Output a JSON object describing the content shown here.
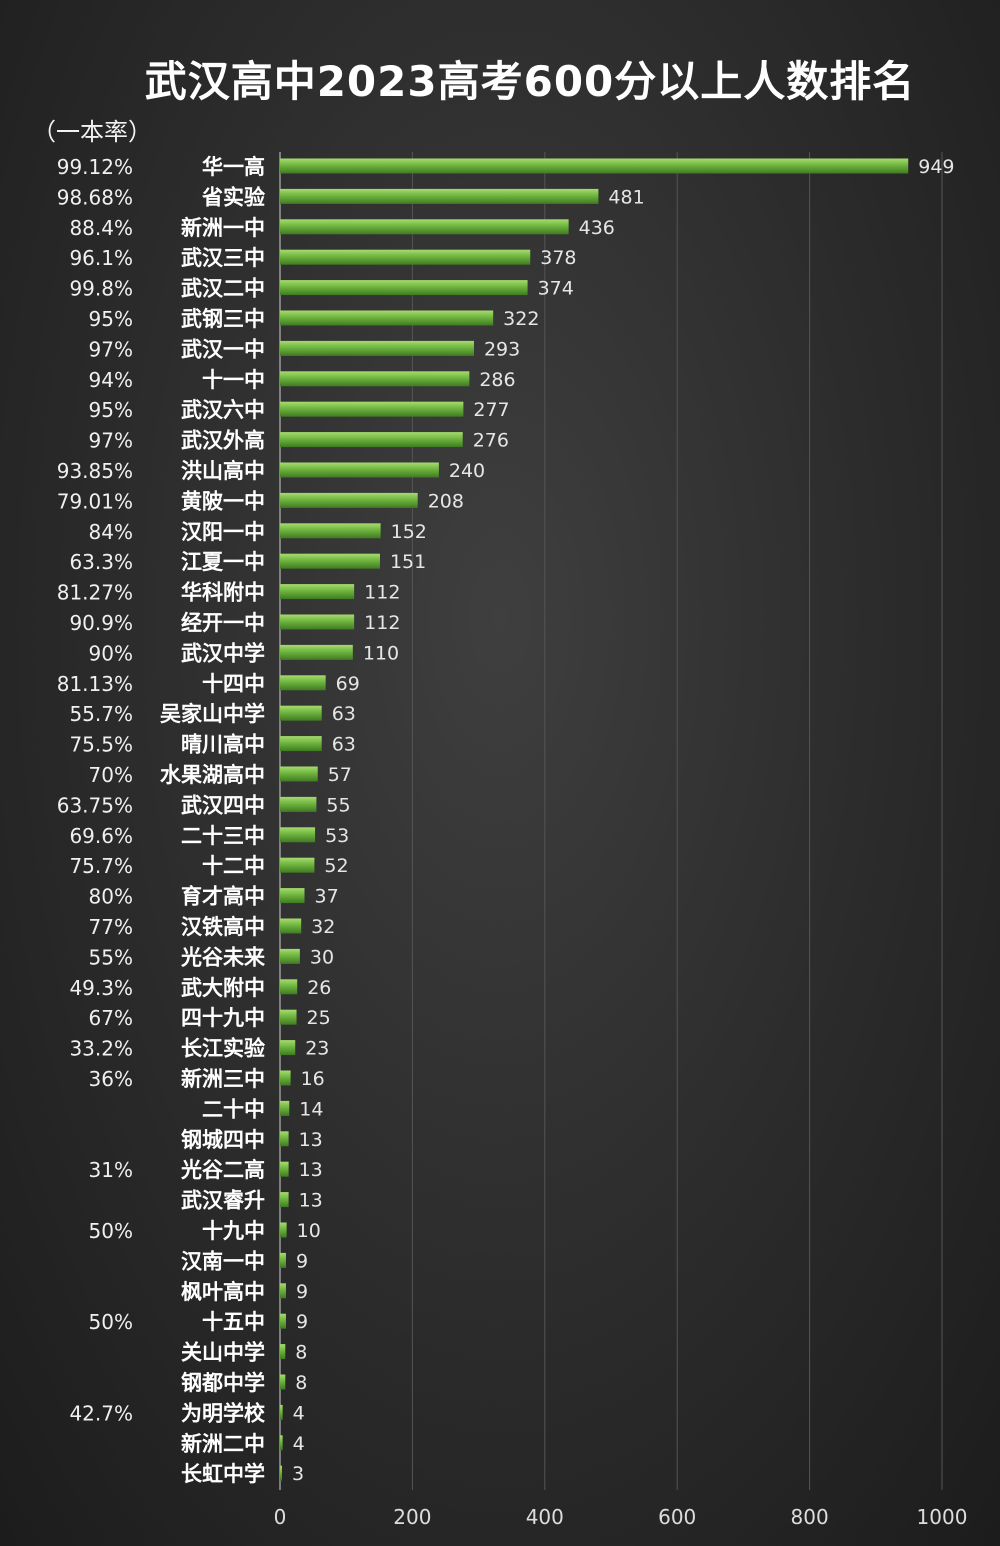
{
  "title": "武汉高中2023高考600分以上人数排名",
  "rate_header": "（一本率）",
  "chart_data": {
    "type": "bar",
    "orientation": "horizontal",
    "title": "武汉高中2023高考600分以上人数排名",
    "xlim": [
      0,
      1000
    ],
    "x_ticks": [
      0,
      200,
      400,
      600,
      800,
      1000
    ],
    "grid": true,
    "bar_color": "#6db33f",
    "categories": [
      "华一高",
      "省实验",
      "新洲一中",
      "武汉三中",
      "武汉二中",
      "武钢三中",
      "武汉一中",
      "十一中",
      "武汉六中",
      "武汉外高",
      "洪山高中",
      "黄陂一中",
      "汉阳一中",
      "江夏一中",
      "华科附中",
      "经开一中",
      "武汉中学",
      "十四中",
      "吴家山中学",
      "晴川高中",
      "水果湖高中",
      "武汉四中",
      "二十三中",
      "十二中",
      "育才高中",
      "汉铁高中",
      "光谷未来",
      "武大附中",
      "四十九中",
      "长江实验",
      "新洲三中",
      "二十中",
      "钢城四中",
      "光谷二高",
      "武汉睿升",
      "十九中",
      "汉南一中",
      "枫叶高中",
      "十五中",
      "关山中学",
      "钢都中学",
      "为明学校",
      "新洲二中",
      "长虹中学"
    ],
    "values": [
      949,
      481,
      436,
      378,
      374,
      322,
      293,
      286,
      277,
      276,
      240,
      208,
      152,
      151,
      112,
      112,
      110,
      69,
      63,
      63,
      57,
      55,
      53,
      52,
      37,
      32,
      30,
      26,
      25,
      23,
      16,
      14,
      13,
      13,
      13,
      10,
      9,
      9,
      9,
      8,
      8,
      4,
      4,
      3
    ],
    "rates": [
      "99.12%",
      "98.68%",
      "88.4%",
      "96.1%",
      "99.8%",
      "95%",
      "97%",
      "94%",
      "95%",
      "97%",
      "93.85%",
      "79.01%",
      "84%",
      "63.3%",
      "81.27%",
      "90.9%",
      "90%",
      "81.13%",
      "55.7%",
      "75.5%",
      "70%",
      "63.75%",
      "69.6%",
      "75.7%",
      "80%",
      "77%",
      "55%",
      "49.3%",
      "67%",
      "33.2%",
      "36%",
      "",
      "",
      "31%",
      "",
      "50%",
      "",
      "",
      "50%",
      "",
      "",
      "42.7%",
      "",
      ""
    ]
  }
}
